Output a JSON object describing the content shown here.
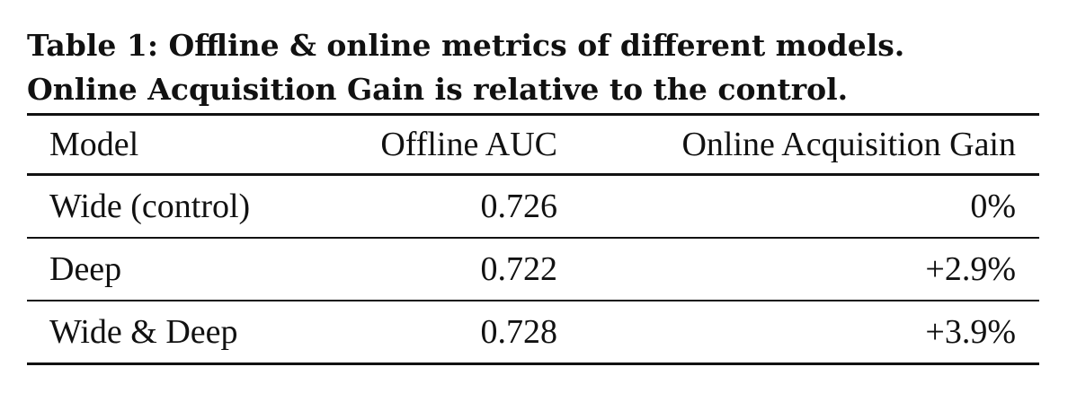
{
  "caption": {
    "line1": "Table 1: Offline & online metrics of different models.",
    "line2": "Online Acquisition Gain is relative to the control."
  },
  "table": {
    "columns": [
      "Model",
      "Offline AUC",
      "Online Acquisition Gain"
    ],
    "rows": [
      [
        "Wide (control)",
        "0.726",
        "0%"
      ],
      [
        "Deep",
        "0.722",
        "+2.9%"
      ],
      [
        "Wide & Deep",
        "0.728",
        "+3.9%"
      ]
    ]
  }
}
